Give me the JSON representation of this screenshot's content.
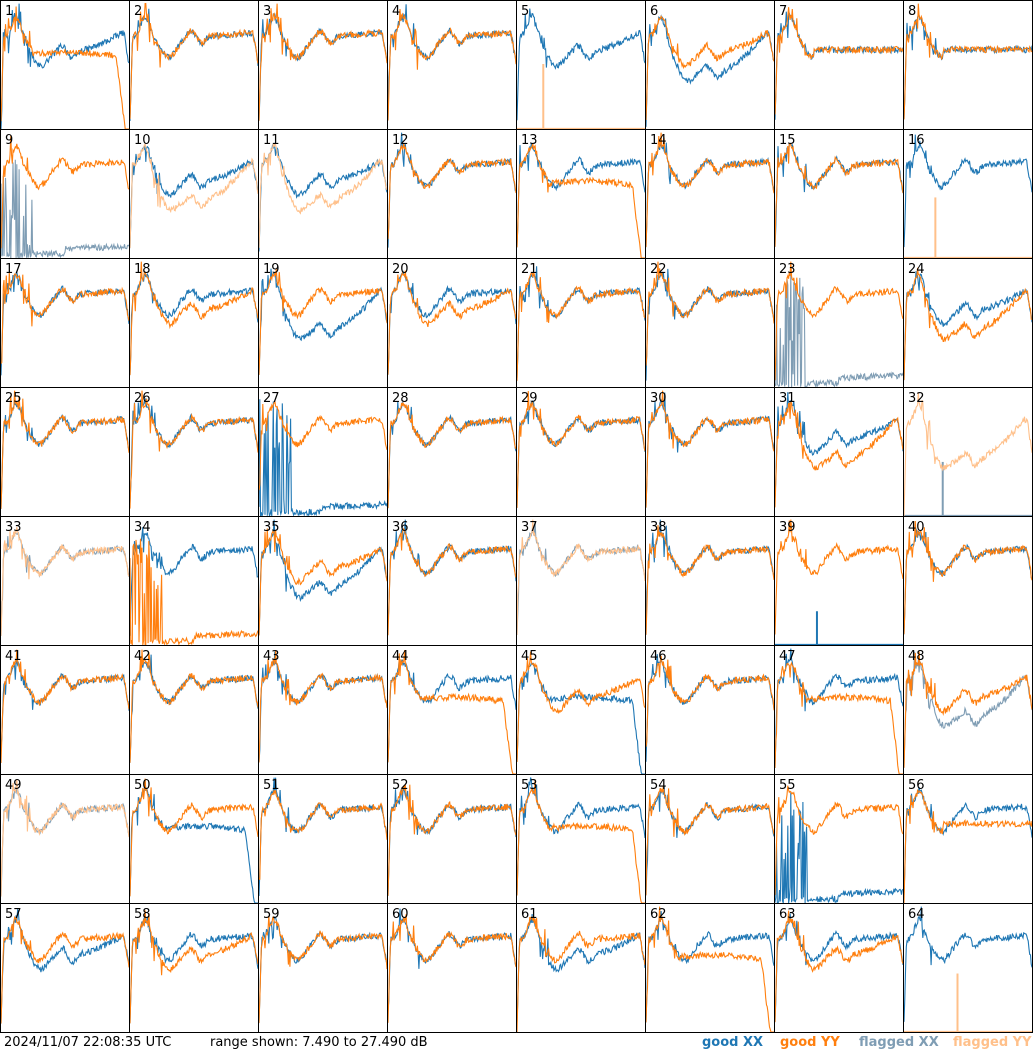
{
  "footer": {
    "timestamp": "2024/11/07 22:08:35 UTC",
    "range": "range shown: 7.490 to 27.490 dB",
    "legend": {
      "good_xx": "good XX",
      "good_yy": "good YY",
      "flagged_xx": "flagged XX",
      "flagged_yy": "flagged YY"
    }
  },
  "colors": {
    "good_xx": "#1f77b4",
    "good_yy": "#ff7f0e",
    "flagged_xx": "#7f9db4",
    "flagged_yy": "#ffc08a",
    "grid": "#000000"
  },
  "chart_data": {
    "type": "line",
    "title": "",
    "xlabel": "",
    "ylabel": "",
    "ylim": [
      7.49,
      27.49
    ],
    "unit": "dB",
    "grid": {
      "rows": 8,
      "cols": 8
    },
    "panels": [
      {
        "label": "1",
        "xx": {
          "status": "good",
          "shape": "dip"
        },
        "yy": {
          "status": "good",
          "shape": "collapse"
        }
      },
      {
        "label": "2",
        "xx": {
          "status": "good",
          "shape": "normal"
        },
        "yy": {
          "status": "good",
          "shape": "normal"
        }
      },
      {
        "label": "3",
        "xx": {
          "status": "good",
          "shape": "normal"
        },
        "yy": {
          "status": "good",
          "shape": "normal"
        }
      },
      {
        "label": "4",
        "xx": {
          "status": "good",
          "shape": "normal"
        },
        "yy": {
          "status": "good",
          "shape": "normal"
        }
      },
      {
        "label": "5",
        "xx": {
          "status": "good",
          "shape": "dip"
        },
        "yy": {
          "status": "flagged",
          "shape": "low"
        }
      },
      {
        "label": "6",
        "xx": {
          "status": "good",
          "shape": "deepdip"
        },
        "yy": {
          "status": "good",
          "shape": "dip"
        }
      },
      {
        "label": "7",
        "xx": {
          "status": "good",
          "shape": "flat"
        },
        "yy": {
          "status": "good",
          "shape": "flat"
        }
      },
      {
        "label": "8",
        "xx": {
          "status": "good",
          "shape": "flat"
        },
        "yy": {
          "status": "good",
          "shape": "flat"
        }
      },
      {
        "label": "9",
        "xx": {
          "status": "flagged",
          "shape": "spikes"
        },
        "yy": {
          "status": "good",
          "shape": "normal"
        }
      },
      {
        "label": "10",
        "xx": {
          "status": "good",
          "shape": "dip"
        },
        "yy": {
          "status": "flagged",
          "shape": "deepdip"
        }
      },
      {
        "label": "11",
        "xx": {
          "status": "good",
          "shape": "dip"
        },
        "yy": {
          "status": "flagged",
          "shape": "deepdip"
        }
      },
      {
        "label": "12",
        "xx": {
          "status": "good",
          "shape": "normal"
        },
        "yy": {
          "status": "good",
          "shape": "normal"
        }
      },
      {
        "label": "13",
        "xx": {
          "status": "good",
          "shape": "normal"
        },
        "yy": {
          "status": "good",
          "shape": "collapse"
        }
      },
      {
        "label": "14",
        "xx": {
          "status": "good",
          "shape": "normal"
        },
        "yy": {
          "status": "good",
          "shape": "normal"
        }
      },
      {
        "label": "15",
        "xx": {
          "status": "good",
          "shape": "normal"
        },
        "yy": {
          "status": "good",
          "shape": "normal"
        }
      },
      {
        "label": "16",
        "xx": {
          "status": "good",
          "shape": "normal"
        },
        "yy": {
          "status": "flagged",
          "shape": "low"
        }
      },
      {
        "label": "17",
        "xx": {
          "status": "good",
          "shape": "normal"
        },
        "yy": {
          "status": "good",
          "shape": "normal"
        }
      },
      {
        "label": "18",
        "xx": {
          "status": "good",
          "shape": "normal"
        },
        "yy": {
          "status": "good",
          "shape": "dip"
        }
      },
      {
        "label": "19",
        "xx": {
          "status": "good",
          "shape": "deepdip"
        },
        "yy": {
          "status": "good",
          "shape": "normal"
        }
      },
      {
        "label": "20",
        "xx": {
          "status": "good",
          "shape": "normal"
        },
        "yy": {
          "status": "good",
          "shape": "dip"
        }
      },
      {
        "label": "21",
        "xx": {
          "status": "good",
          "shape": "normal"
        },
        "yy": {
          "status": "good",
          "shape": "normal"
        }
      },
      {
        "label": "22",
        "xx": {
          "status": "good",
          "shape": "normal"
        },
        "yy": {
          "status": "good",
          "shape": "normal"
        }
      },
      {
        "label": "23",
        "xx": {
          "status": "flagged",
          "shape": "spikes"
        },
        "yy": {
          "status": "good",
          "shape": "normal"
        }
      },
      {
        "label": "24",
        "xx": {
          "status": "good",
          "shape": "dip"
        },
        "yy": {
          "status": "good",
          "shape": "deepdip"
        }
      },
      {
        "label": "25",
        "xx": {
          "status": "good",
          "shape": "normal"
        },
        "yy": {
          "status": "good",
          "shape": "normal"
        }
      },
      {
        "label": "26",
        "xx": {
          "status": "good",
          "shape": "normal"
        },
        "yy": {
          "status": "good",
          "shape": "normal"
        }
      },
      {
        "label": "27",
        "xx": {
          "status": "good",
          "shape": "spikes"
        },
        "yy": {
          "status": "good",
          "shape": "normal"
        }
      },
      {
        "label": "28",
        "xx": {
          "status": "good",
          "shape": "normal"
        },
        "yy": {
          "status": "good",
          "shape": "normal"
        }
      },
      {
        "label": "29",
        "xx": {
          "status": "good",
          "shape": "normal"
        },
        "yy": {
          "status": "good",
          "shape": "normal"
        }
      },
      {
        "label": "30",
        "xx": {
          "status": "good",
          "shape": "normal"
        },
        "yy": {
          "status": "good",
          "shape": "normal"
        }
      },
      {
        "label": "31",
        "xx": {
          "status": "good",
          "shape": "dip"
        },
        "yy": {
          "status": "good",
          "shape": "deepdip"
        }
      },
      {
        "label": "32",
        "xx": {
          "status": "flagged",
          "shape": "low"
        },
        "yy": {
          "status": "flagged",
          "shape": "deepdip"
        }
      },
      {
        "label": "33",
        "xx": {
          "status": "flagged",
          "shape": "normal"
        },
        "yy": {
          "status": "flagged",
          "shape": "normal"
        }
      },
      {
        "label": "34",
        "xx": {
          "status": "good",
          "shape": "normal"
        },
        "yy": {
          "status": "good",
          "shape": "spikes"
        }
      },
      {
        "label": "35",
        "xx": {
          "status": "good",
          "shape": "deepdip"
        },
        "yy": {
          "status": "good",
          "shape": "dip"
        }
      },
      {
        "label": "36",
        "xx": {
          "status": "good",
          "shape": "normal"
        },
        "yy": {
          "status": "good",
          "shape": "normal"
        }
      },
      {
        "label": "37",
        "xx": {
          "status": "flagged",
          "shape": "normal"
        },
        "yy": {
          "status": "flagged",
          "shape": "normal"
        }
      },
      {
        "label": "38",
        "xx": {
          "status": "good",
          "shape": "normal"
        },
        "yy": {
          "status": "good",
          "shape": "normal"
        }
      },
      {
        "label": "39",
        "xx": {
          "status": "good",
          "shape": "low"
        },
        "yy": {
          "status": "good",
          "shape": "normal"
        }
      },
      {
        "label": "40",
        "xx": {
          "status": "good",
          "shape": "normal"
        },
        "yy": {
          "status": "good",
          "shape": "normal"
        }
      },
      {
        "label": "41",
        "xx": {
          "status": "good",
          "shape": "normal"
        },
        "yy": {
          "status": "good",
          "shape": "normal"
        }
      },
      {
        "label": "42",
        "xx": {
          "status": "good",
          "shape": "normal"
        },
        "yy": {
          "status": "good",
          "shape": "normal"
        }
      },
      {
        "label": "43",
        "xx": {
          "status": "good",
          "shape": "normal"
        },
        "yy": {
          "status": "good",
          "shape": "normal"
        }
      },
      {
        "label": "44",
        "xx": {
          "status": "good",
          "shape": "normal"
        },
        "yy": {
          "status": "good",
          "shape": "collapse"
        }
      },
      {
        "label": "45",
        "xx": {
          "status": "good",
          "shape": "collapse"
        },
        "yy": {
          "status": "good",
          "shape": "dip"
        }
      },
      {
        "label": "46",
        "xx": {
          "status": "good",
          "shape": "normal"
        },
        "yy": {
          "status": "good",
          "shape": "normal"
        }
      },
      {
        "label": "47",
        "xx": {
          "status": "good",
          "shape": "normal"
        },
        "yy": {
          "status": "good",
          "shape": "collapse"
        }
      },
      {
        "label": "48",
        "xx": {
          "status": "flagged",
          "shape": "deepdip"
        },
        "yy": {
          "status": "good",
          "shape": "dip"
        }
      },
      {
        "label": "49",
        "xx": {
          "status": "flagged",
          "shape": "normal"
        },
        "yy": {
          "status": "flagged",
          "shape": "normal"
        }
      },
      {
        "label": "50",
        "xx": {
          "status": "good",
          "shape": "collapse"
        },
        "yy": {
          "status": "good",
          "shape": "normal"
        }
      },
      {
        "label": "51",
        "xx": {
          "status": "good",
          "shape": "normal"
        },
        "yy": {
          "status": "good",
          "shape": "normal"
        }
      },
      {
        "label": "52",
        "xx": {
          "status": "good",
          "shape": "normal"
        },
        "yy": {
          "status": "good",
          "shape": "normal"
        }
      },
      {
        "label": "53",
        "xx": {
          "status": "good",
          "shape": "normal"
        },
        "yy": {
          "status": "good",
          "shape": "collapse"
        }
      },
      {
        "label": "54",
        "xx": {
          "status": "good",
          "shape": "normal"
        },
        "yy": {
          "status": "good",
          "shape": "normal"
        }
      },
      {
        "label": "55",
        "xx": {
          "status": "good",
          "shape": "spikes"
        },
        "yy": {
          "status": "good",
          "shape": "normal"
        }
      },
      {
        "label": "56",
        "xx": {
          "status": "good",
          "shape": "normal"
        },
        "yy": {
          "status": "good",
          "shape": "flat"
        }
      },
      {
        "label": "57",
        "xx": {
          "status": "good",
          "shape": "dip"
        },
        "yy": {
          "status": "good",
          "shape": "normal"
        }
      },
      {
        "label": "58",
        "xx": {
          "status": "good",
          "shape": "normal"
        },
        "yy": {
          "status": "good",
          "shape": "dip"
        }
      },
      {
        "label": "59",
        "xx": {
          "status": "good",
          "shape": "normal"
        },
        "yy": {
          "status": "good",
          "shape": "normal"
        }
      },
      {
        "label": "60",
        "xx": {
          "status": "good",
          "shape": "normal"
        },
        "yy": {
          "status": "good",
          "shape": "normal"
        }
      },
      {
        "label": "61",
        "xx": {
          "status": "good",
          "shape": "dip"
        },
        "yy": {
          "status": "good",
          "shape": "normal"
        }
      },
      {
        "label": "62",
        "xx": {
          "status": "good",
          "shape": "normal"
        },
        "yy": {
          "status": "good",
          "shape": "collapse"
        }
      },
      {
        "label": "63",
        "xx": {
          "status": "good",
          "shape": "normal"
        },
        "yy": {
          "status": "good",
          "shape": "dip"
        }
      },
      {
        "label": "64",
        "xx": {
          "status": "good",
          "shape": "normal"
        },
        "yy": {
          "status": "flagged",
          "shape": "low"
        }
      }
    ]
  }
}
